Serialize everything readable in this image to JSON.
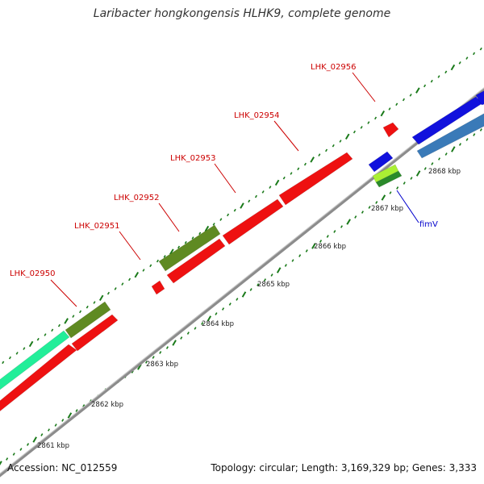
{
  "title": "Laribacter hongkongensis HLHK9, complete genome",
  "accession": "Accession: NC_012559",
  "summary": "Topology: circular; Length: 3,169,329 bp; Genes: 3,333",
  "colors": {
    "gene_red": "#ee1111",
    "olive": "#5f8a22",
    "mint": "#22ee99",
    "blue": "#1111dd",
    "steel_blue": "#3a7ab8",
    "light_green": "#aaf033",
    "dark_green": "#2a8a2a",
    "backbone": "#8c8c8c",
    "tick": "#1a7a1a",
    "gene_label": "#cc0000",
    "fim_label": "#0000cc"
  },
  "scale_labels": [
    "2861 kbp",
    "2862 kbp",
    "2863 kbp",
    "2864 kbp",
    "2865 kbp",
    "2866 kbp",
    "2867 kbp",
    "2868 kbp"
  ],
  "gene_labels": [
    "LHK_02950",
    "LHK_02951",
    "LHK_02952",
    "LHK_02953",
    "LHK_02954",
    "LHK_02956",
    "fimV"
  ]
}
